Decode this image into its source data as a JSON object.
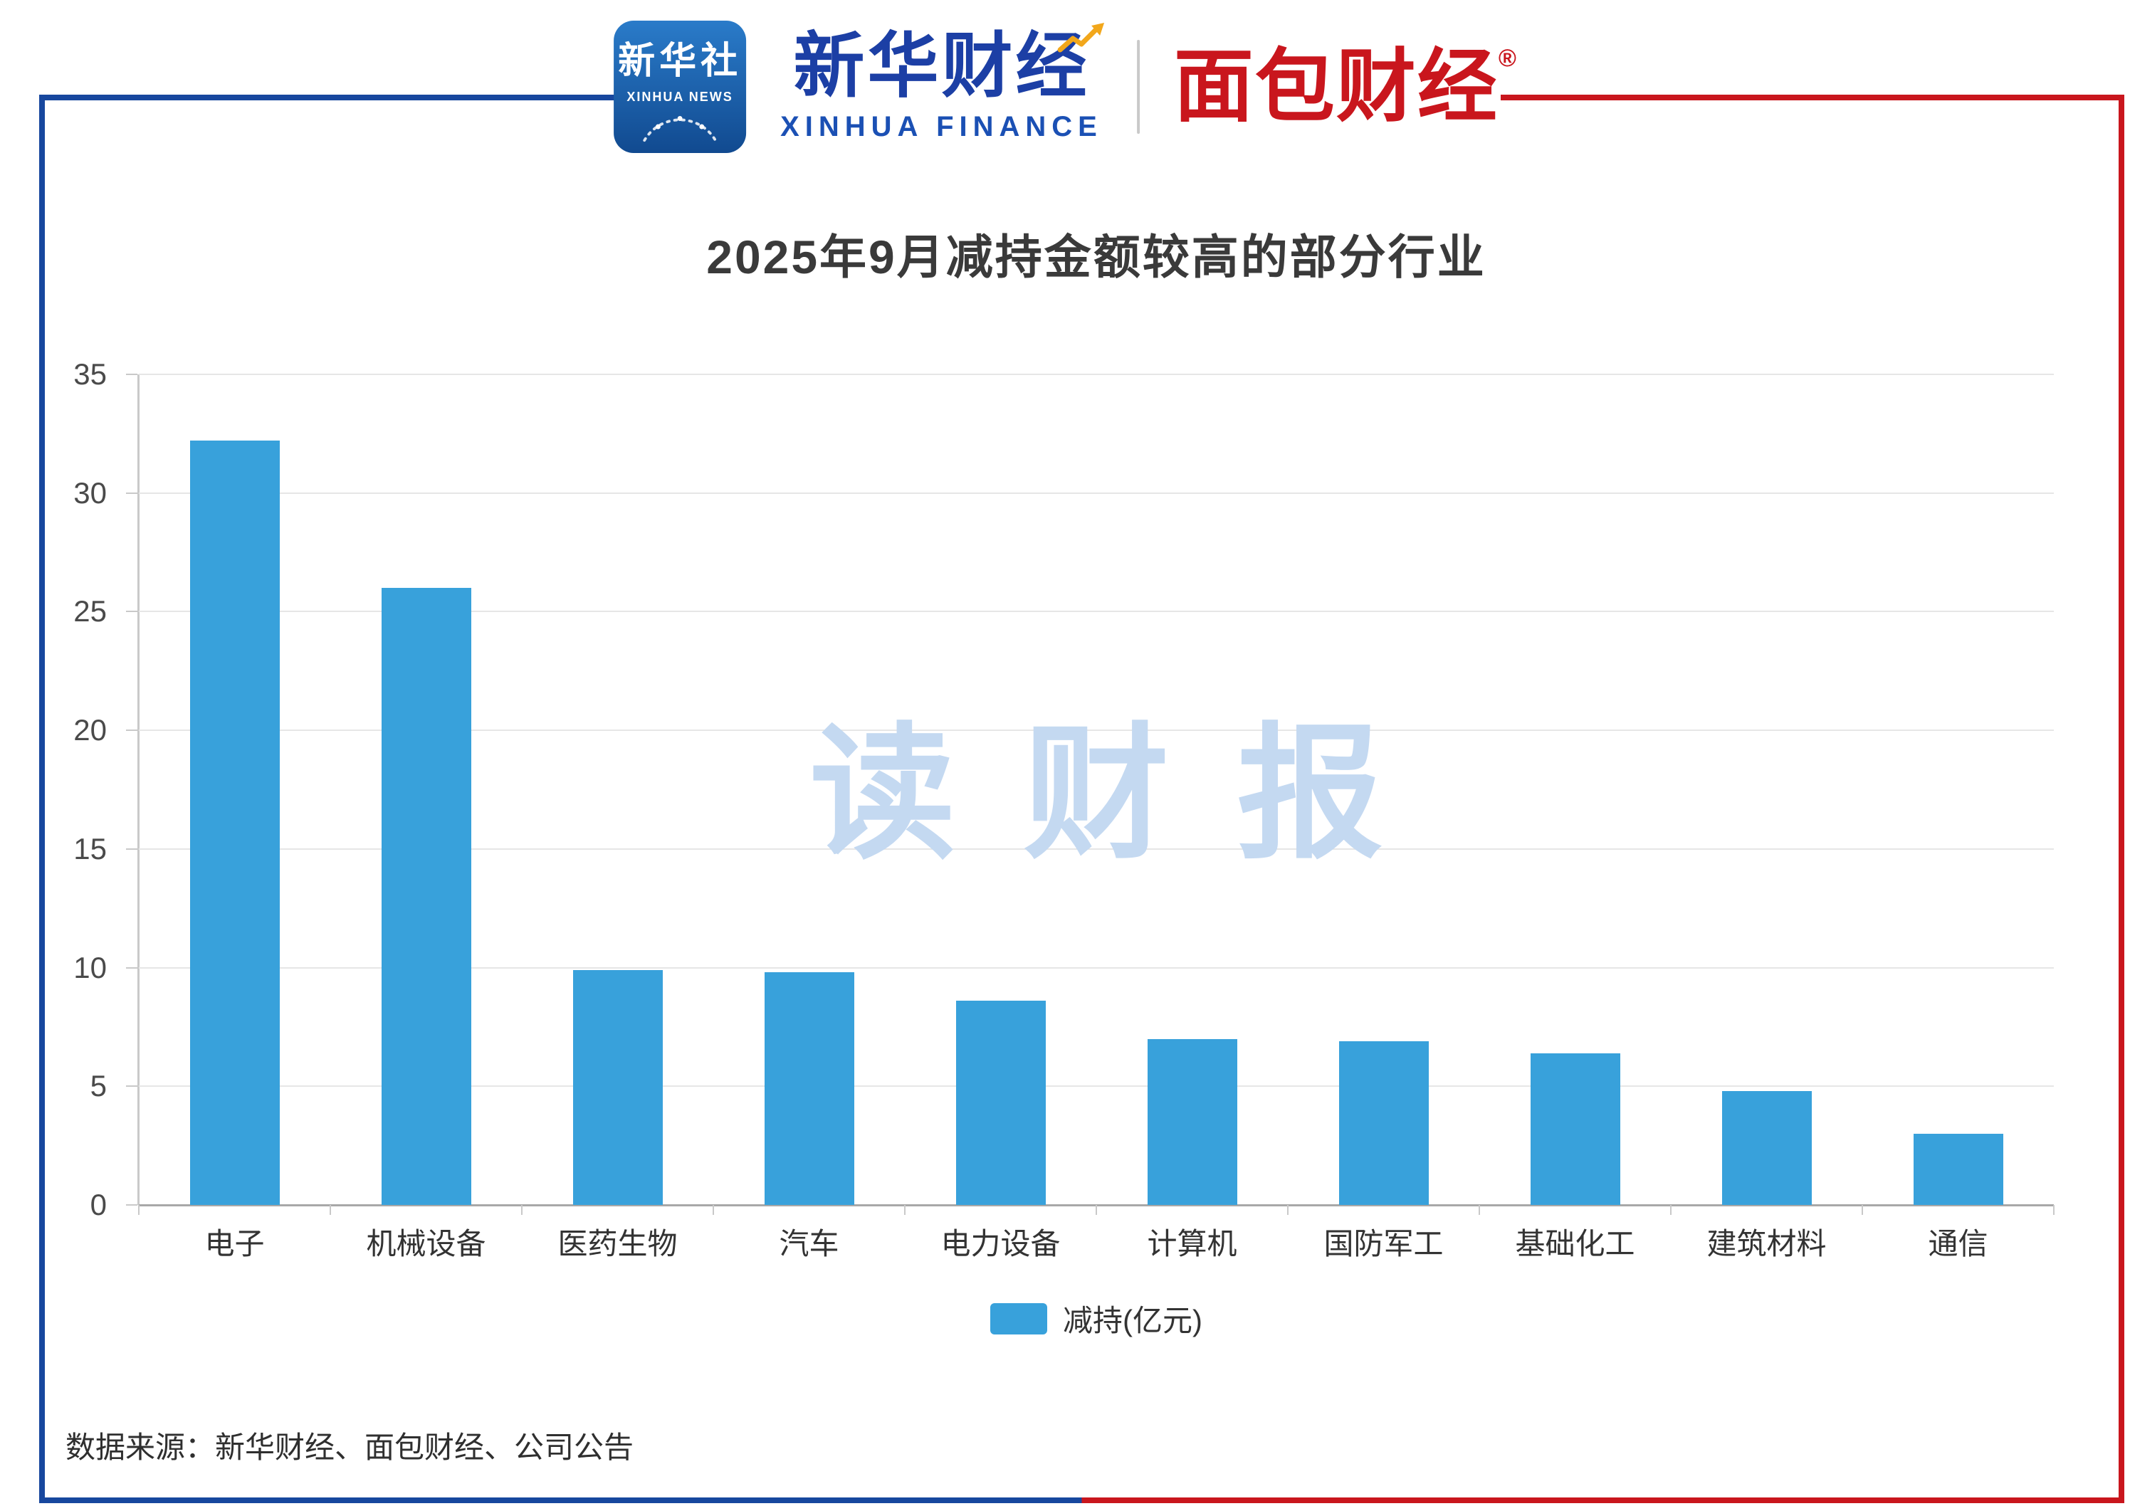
{
  "header": {
    "xinhua_news": {
      "name": "新华社",
      "subtitle": "XINHUA NEWS"
    },
    "xinhua_finance": {
      "name": "新华财经",
      "subtitle": "XINHUA FINANCE"
    },
    "mianbao": {
      "name": "面包财经",
      "reg": "®"
    }
  },
  "chart_data": {
    "type": "bar",
    "title": "2025年9月减持金额较高的部分行业",
    "categories": [
      "电子",
      "机械设备",
      "医药生物",
      "汽车",
      "电力设备",
      "计算机",
      "国防军工",
      "基础化工",
      "建筑材料",
      "通信"
    ],
    "values": [
      32.2,
      26.0,
      9.9,
      9.8,
      8.6,
      7.0,
      6.9,
      6.4,
      4.8,
      3.0
    ],
    "legend": "减持(亿元)",
    "xlabel": "",
    "ylabel": "",
    "ylim": [
      0,
      35
    ],
    "yticks": [
      0,
      5,
      10,
      15,
      20,
      25,
      30,
      35
    ],
    "grid": true,
    "legend_position": "bottom",
    "bar_color": "#38A1DB",
    "watermark": "读财报"
  },
  "footer": {
    "source": "数据来源：新华财经、面包财经、公司公告"
  },
  "colors": {
    "frame_blue": "#17479E",
    "frame_red": "#C9161D",
    "bar": "#38A1DB",
    "watermark": "#C4D9F1"
  }
}
